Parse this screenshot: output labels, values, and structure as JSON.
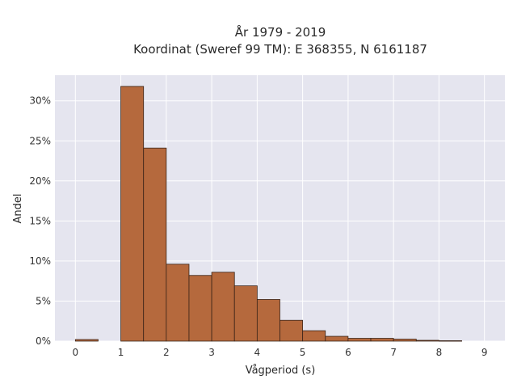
{
  "chart_data": {
    "type": "bar",
    "title_lines": [
      "År 1979 - 2019",
      "Koordinat (Sweref 99 TM): E 368355, N 6161187"
    ],
    "xlabel": "Vågperiod (s)",
    "ylabel": "Andel",
    "bin_width": 0.5,
    "bins": [
      {
        "start": 0.0,
        "value": 0.2
      },
      {
        "start": 0.5,
        "value": 0.0
      },
      {
        "start": 1.0,
        "value": 31.8
      },
      {
        "start": 1.5,
        "value": 24.1
      },
      {
        "start": 2.0,
        "value": 9.6
      },
      {
        "start": 2.5,
        "value": 8.2
      },
      {
        "start": 3.0,
        "value": 8.6
      },
      {
        "start": 3.5,
        "value": 6.9
      },
      {
        "start": 4.0,
        "value": 5.2
      },
      {
        "start": 4.5,
        "value": 2.6
      },
      {
        "start": 5.0,
        "value": 1.3
      },
      {
        "start": 5.5,
        "value": 0.6
      },
      {
        "start": 6.0,
        "value": 0.35
      },
      {
        "start": 6.5,
        "value": 0.35
      },
      {
        "start": 7.0,
        "value": 0.25
      },
      {
        "start": 7.5,
        "value": 0.1
      },
      {
        "start": 8.0,
        "value": 0.05
      }
    ],
    "xticks": [
      "0",
      "1",
      "2",
      "3",
      "4",
      "5",
      "6",
      "7",
      "8",
      "9"
    ],
    "yticks": [
      "0%",
      "5%",
      "10%",
      "15%",
      "20%",
      "25%",
      "30%"
    ],
    "xlim": [
      -0.45,
      9.45
    ],
    "ylim": [
      0,
      33.2
    ],
    "grid": true,
    "colors": {
      "bar_fill": "#b5693d",
      "bar_edge": "#3a2418",
      "plot_bg": "#e5e5ef",
      "grid": "#ffffff"
    }
  }
}
